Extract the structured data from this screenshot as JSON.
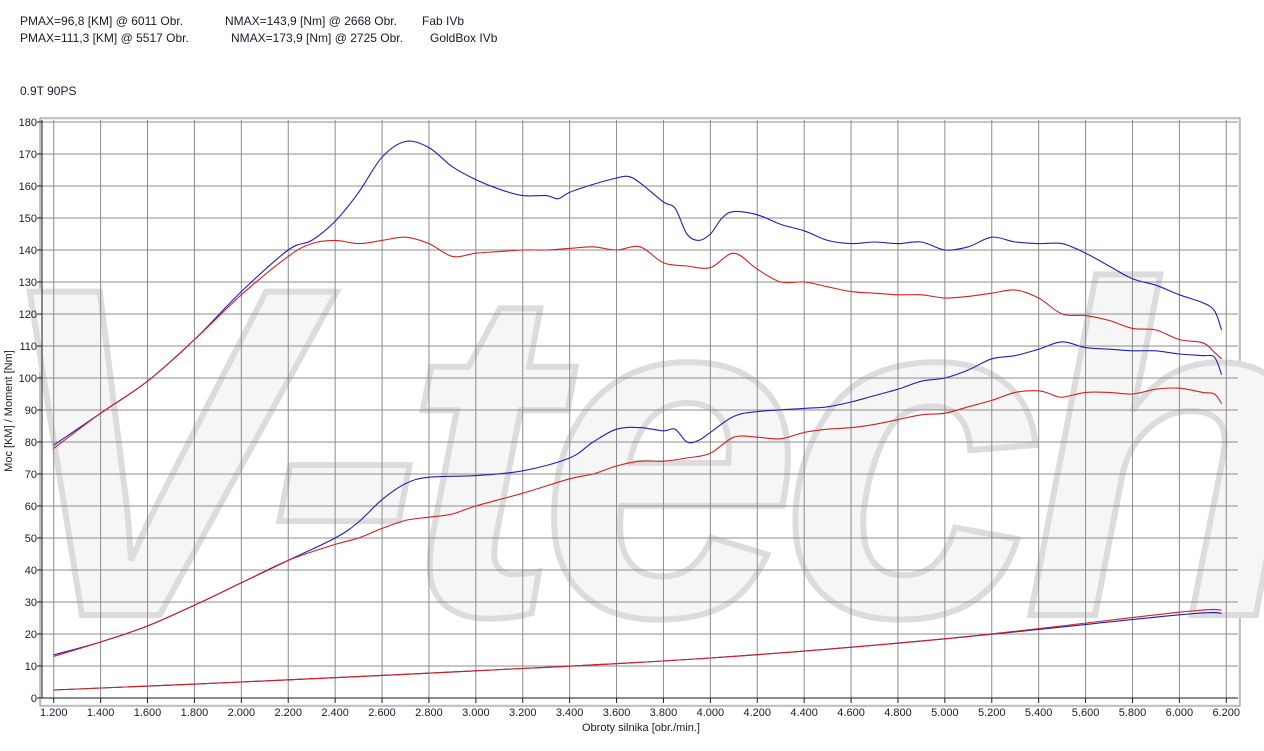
{
  "header": {
    "line1": {
      "pmax": "PMAX=96,8 [KM] @ 6011 Obr.",
      "nmax": "NMAX=143,9 [Nm] @ 2668 Obr.",
      "name": "Fab IVb"
    },
    "line2": {
      "pmax": "PMAX=111,3 [KM] @ 5517 Obr.",
      "nmax": "NMAX=173,9 [Nm] @ 2725 Obr.",
      "name": "GoldBox IVb"
    },
    "engine": "0.9T 90PS"
  },
  "watermark": {
    "text": "V-tech"
  },
  "chart_data": {
    "type": "line",
    "xlabel": "Obroty silnika [obr./min.]",
    "ylabel": "Moc [KM] / Moment [Nm]",
    "xlim": [
      1150,
      6250
    ],
    "ylim": [
      0,
      180
    ],
    "xticks": [
      1200,
      1400,
      1600,
      1800,
      2000,
      2200,
      2400,
      2600,
      2800,
      3000,
      3200,
      3400,
      3600,
      3800,
      4000,
      4200,
      4400,
      4600,
      4800,
      5000,
      5200,
      5400,
      5600,
      5800,
      6000,
      6200
    ],
    "xtick_labels": [
      "1.200",
      "1.400",
      "1.600",
      "1.800",
      "2.000",
      "2.200",
      "2.400",
      "2.600",
      "2.800",
      "3.000",
      "3.200",
      "3.400",
      "3.600",
      "3.800",
      "4.000",
      "4.200",
      "4.400",
      "4.600",
      "4.800",
      "5.000",
      "5.200",
      "5.400",
      "5.600",
      "5.800",
      "6.000",
      "6.200"
    ],
    "yticks": [
      0,
      10,
      20,
      30,
      40,
      50,
      60,
      70,
      80,
      90,
      100,
      110,
      120,
      130,
      140,
      150,
      160,
      170,
      180
    ],
    "grid": true,
    "colors": {
      "tuned": "#1f1fbf",
      "stock": "#d42020",
      "background": "#ffffff",
      "grid": "#8c8c8c"
    },
    "series": [
      {
        "color": "#1f1fbf",
        "points": [
          [
            1200,
            79
          ],
          [
            1400,
            89
          ],
          [
            1600,
            99
          ],
          [
            1800,
            112
          ],
          [
            2000,
            127
          ],
          [
            2200,
            140
          ],
          [
            2300,
            143
          ],
          [
            2400,
            149
          ],
          [
            2500,
            158
          ],
          [
            2600,
            169
          ],
          [
            2700,
            173.9
          ],
          [
            2800,
            172
          ],
          [
            2900,
            166
          ],
          [
            3000,
            162
          ],
          [
            3100,
            159
          ],
          [
            3200,
            157
          ],
          [
            3300,
            157
          ],
          [
            3350,
            156
          ],
          [
            3400,
            158
          ],
          [
            3500,
            160.5
          ],
          [
            3600,
            162.5
          ],
          [
            3650,
            163
          ],
          [
            3700,
            161
          ],
          [
            3800,
            155
          ],
          [
            3850,
            153
          ],
          [
            3900,
            145
          ],
          [
            3950,
            143
          ],
          [
            4000,
            145
          ],
          [
            4050,
            150
          ],
          [
            4100,
            152
          ],
          [
            4200,
            151
          ],
          [
            4300,
            148
          ],
          [
            4400,
            146
          ],
          [
            4500,
            143
          ],
          [
            4600,
            142
          ],
          [
            4700,
            142.5
          ],
          [
            4800,
            142
          ],
          [
            4900,
            142.5
          ],
          [
            5000,
            140
          ],
          [
            5100,
            141
          ],
          [
            5200,
            144
          ],
          [
            5300,
            142.5
          ],
          [
            5400,
            142
          ],
          [
            5500,
            142
          ],
          [
            5600,
            139
          ],
          [
            5700,
            135
          ],
          [
            5800,
            131
          ],
          [
            5900,
            129
          ],
          [
            6000,
            126
          ],
          [
            6100,
            123.5
          ],
          [
            6150,
            121
          ],
          [
            6180,
            115
          ]
        ]
      },
      {
        "color": "#d42020",
        "points": [
          [
            1200,
            78
          ],
          [
            1400,
            89
          ],
          [
            1600,
            99
          ],
          [
            1800,
            112
          ],
          [
            2000,
            126
          ],
          [
            2200,
            138
          ],
          [
            2300,
            142
          ],
          [
            2400,
            143
          ],
          [
            2500,
            142
          ],
          [
            2600,
            143
          ],
          [
            2700,
            144
          ],
          [
            2800,
            142
          ],
          [
            2900,
            138
          ],
          [
            3000,
            139
          ],
          [
            3100,
            139.5
          ],
          [
            3200,
            140
          ],
          [
            3300,
            140
          ],
          [
            3400,
            140.5
          ],
          [
            3500,
            141
          ],
          [
            3600,
            140
          ],
          [
            3700,
            141
          ],
          [
            3800,
            136
          ],
          [
            3900,
            135
          ],
          [
            4000,
            134.5
          ],
          [
            4100,
            139
          ],
          [
            4200,
            134
          ],
          [
            4300,
            130
          ],
          [
            4400,
            130
          ],
          [
            4500,
            128.5
          ],
          [
            4600,
            127
          ],
          [
            4700,
            126.5
          ],
          [
            4800,
            126
          ],
          [
            4900,
            126
          ],
          [
            5000,
            125
          ],
          [
            5100,
            125.5
          ],
          [
            5200,
            126.5
          ],
          [
            5300,
            127.5
          ],
          [
            5400,
            125
          ],
          [
            5500,
            120
          ],
          [
            5600,
            119.5
          ],
          [
            5700,
            118
          ],
          [
            5800,
            115.5
          ],
          [
            5900,
            115
          ],
          [
            6000,
            112
          ],
          [
            6100,
            111
          ],
          [
            6150,
            108
          ],
          [
            6180,
            106
          ]
        ]
      },
      {
        "color": "#1f1fbf",
        "points": [
          [
            1200,
            13.5
          ],
          [
            1400,
            17.5
          ],
          [
            1600,
            22.5
          ],
          [
            1800,
            29
          ],
          [
            2000,
            36
          ],
          [
            2200,
            43
          ],
          [
            2400,
            50
          ],
          [
            2500,
            55
          ],
          [
            2600,
            62
          ],
          [
            2700,
            67
          ],
          [
            2800,
            69
          ],
          [
            3000,
            69.5
          ],
          [
            3200,
            71
          ],
          [
            3400,
            75
          ],
          [
            3500,
            80
          ],
          [
            3600,
            84
          ],
          [
            3700,
            84.5
          ],
          [
            3800,
            83.5
          ],
          [
            3850,
            84
          ],
          [
            3900,
            80
          ],
          [
            3950,
            80.5
          ],
          [
            4000,
            83
          ],
          [
            4100,
            88
          ],
          [
            4200,
            89.5
          ],
          [
            4400,
            90.5
          ],
          [
            4500,
            91
          ],
          [
            4600,
            92.5
          ],
          [
            4700,
            94.5
          ],
          [
            4800,
            96.5
          ],
          [
            4900,
            99
          ],
          [
            5000,
            100
          ],
          [
            5100,
            102.5
          ],
          [
            5200,
            106
          ],
          [
            5300,
            107
          ],
          [
            5400,
            109
          ],
          [
            5500,
            111.3
          ],
          [
            5600,
            109.5
          ],
          [
            5700,
            109
          ],
          [
            5800,
            108.5
          ],
          [
            5900,
            108.5
          ],
          [
            6000,
            107.5
          ],
          [
            6100,
            107
          ],
          [
            6150,
            106.5
          ],
          [
            6180,
            101
          ]
        ]
      },
      {
        "color": "#d42020",
        "points": [
          [
            1200,
            13
          ],
          [
            1400,
            17.5
          ],
          [
            1600,
            22.5
          ],
          [
            1800,
            29
          ],
          [
            2000,
            36
          ],
          [
            2200,
            43
          ],
          [
            2400,
            48
          ],
          [
            2500,
            50
          ],
          [
            2600,
            53
          ],
          [
            2700,
            55.5
          ],
          [
            2800,
            56.5
          ],
          [
            2900,
            57.5
          ],
          [
            3000,
            60
          ],
          [
            3200,
            64
          ],
          [
            3400,
            68.5
          ],
          [
            3500,
            70
          ],
          [
            3600,
            72.5
          ],
          [
            3700,
            74
          ],
          [
            3800,
            74
          ],
          [
            3900,
            75
          ],
          [
            4000,
            76.5
          ],
          [
            4100,
            81.5
          ],
          [
            4200,
            81.5
          ],
          [
            4300,
            81
          ],
          [
            4400,
            83
          ],
          [
            4500,
            84
          ],
          [
            4600,
            84.5
          ],
          [
            4700,
            85.5
          ],
          [
            4800,
            87
          ],
          [
            4900,
            88.5
          ],
          [
            5000,
            89
          ],
          [
            5100,
            91
          ],
          [
            5200,
            93
          ],
          [
            5300,
            95.5
          ],
          [
            5400,
            96
          ],
          [
            5450,
            95
          ],
          [
            5500,
            94
          ],
          [
            5600,
            95.5
          ],
          [
            5700,
            95.5
          ],
          [
            5800,
            95
          ],
          [
            5900,
            96.5
          ],
          [
            6000,
            96.8
          ],
          [
            6100,
            95.5
          ],
          [
            6150,
            95
          ],
          [
            6180,
            92
          ]
        ]
      },
      {
        "color": "#1f1fbf",
        "points": [
          [
            1200,
            2.5
          ],
          [
            2000,
            5
          ],
          [
            3000,
            8.5
          ],
          [
            4000,
            12.5
          ],
          [
            5000,
            18.5
          ],
          [
            6000,
            26
          ],
          [
            6180,
            26.5
          ]
        ]
      },
      {
        "color": "#d42020",
        "points": [
          [
            1200,
            2.5
          ],
          [
            2000,
            5
          ],
          [
            3000,
            8.5
          ],
          [
            4000,
            12.5
          ],
          [
            5000,
            18.5
          ],
          [
            6000,
            26.8
          ],
          [
            6180,
            27.5
          ]
        ]
      }
    ]
  }
}
